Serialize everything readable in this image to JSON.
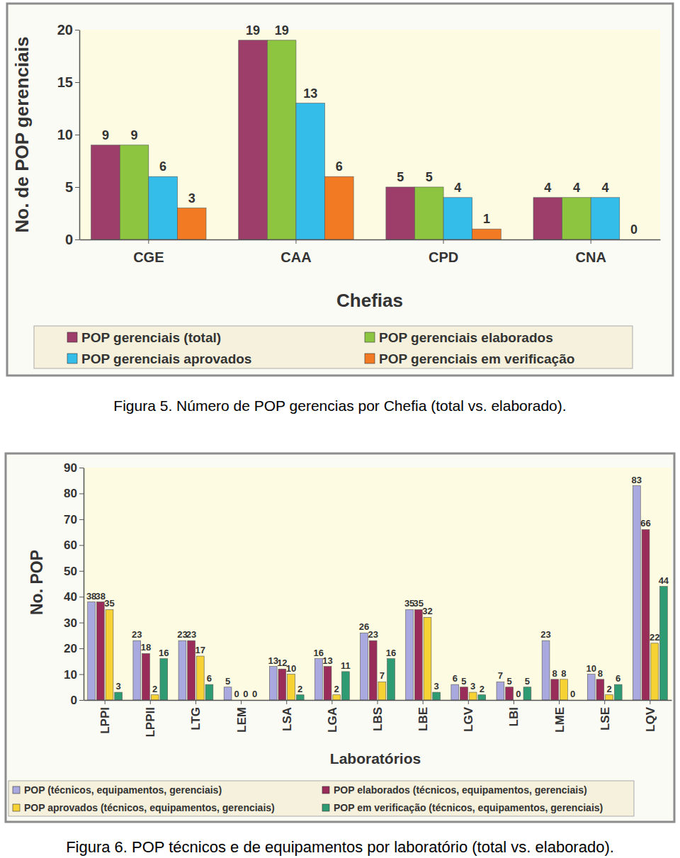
{
  "chart_data": [
    {
      "type": "bar",
      "caption": "Figura 5. Número de POP gerencias por Chefia (total vs. elaborado).",
      "x_label": "Chefias",
      "y_label": "No. de POP gerenciais",
      "categories": [
        "CGE",
        "CAA",
        "CPD",
        "CNA"
      ],
      "series": [
        {
          "name": "POP gerenciais (total)",
          "color": "#9c3d6a",
          "values": [
            9,
            19,
            5,
            4
          ]
        },
        {
          "name": "POP gerenciais elaborados",
          "color": "#8dc540",
          "values": [
            9,
            19,
            5,
            4
          ]
        },
        {
          "name": "POP gerenciais aprovados",
          "color": "#35bdea",
          "values": [
            6,
            13,
            4,
            4
          ]
        },
        {
          "name": "POP gerenciais em verificação",
          "color": "#f27a22",
          "values": [
            3,
            6,
            1,
            0
          ]
        }
      ],
      "ylim": [
        0,
        20
      ],
      "yticks": [
        0,
        5,
        10,
        15,
        20
      ],
      "grid": false,
      "legend": "bottom",
      "data_labels": true
    },
    {
      "type": "bar",
      "caption": "Figura 6. POP técnicos e de equipamentos por laboratório (total vs. elaborado).",
      "x_label": "Laboratórios",
      "y_label": "No. POP",
      "categories": [
        "LPPI",
        "LPPII",
        "LTG",
        "LEM",
        "LSA",
        "LGA",
        "LBS",
        "LBE",
        "LGV",
        "LBI",
        "LME",
        "LSE",
        "LQV"
      ],
      "series": [
        {
          "name": "POP (técnicos, equipamentos, gerenciais)",
          "color": "#a9a9df",
          "values": [
            38,
            23,
            23,
            5,
            13,
            16,
            26,
            35,
            6,
            7,
            23,
            10,
            83
          ]
        },
        {
          "name": "POP elaborados (técnicos, equipamentos, gerenciais)",
          "color": "#9a2c5a",
          "values": [
            38,
            18,
            23,
            0,
            12,
            13,
            23,
            35,
            5,
            5,
            8,
            8,
            66
          ]
        },
        {
          "name": "POP aprovados (técnicos, equipamentos, gerenciais)",
          "color": "#f6d235",
          "values": [
            35,
            2,
            17,
            0,
            10,
            2,
            7,
            32,
            3,
            0,
            8,
            2,
            22
          ]
        },
        {
          "name": "POP em verificação (técnicos, equipamentos, gerenciais)",
          "color": "#2f9b72",
          "values": [
            3,
            16,
            6,
            0,
            2,
            11,
            16,
            3,
            2,
            5,
            0,
            6,
            44
          ]
        }
      ],
      "ylim": [
        0,
        90
      ],
      "yticks": [
        0,
        10,
        20,
        30,
        40,
        50,
        60,
        70,
        80,
        90
      ],
      "grid": false,
      "legend": "bottom",
      "data_labels": true
    }
  ]
}
